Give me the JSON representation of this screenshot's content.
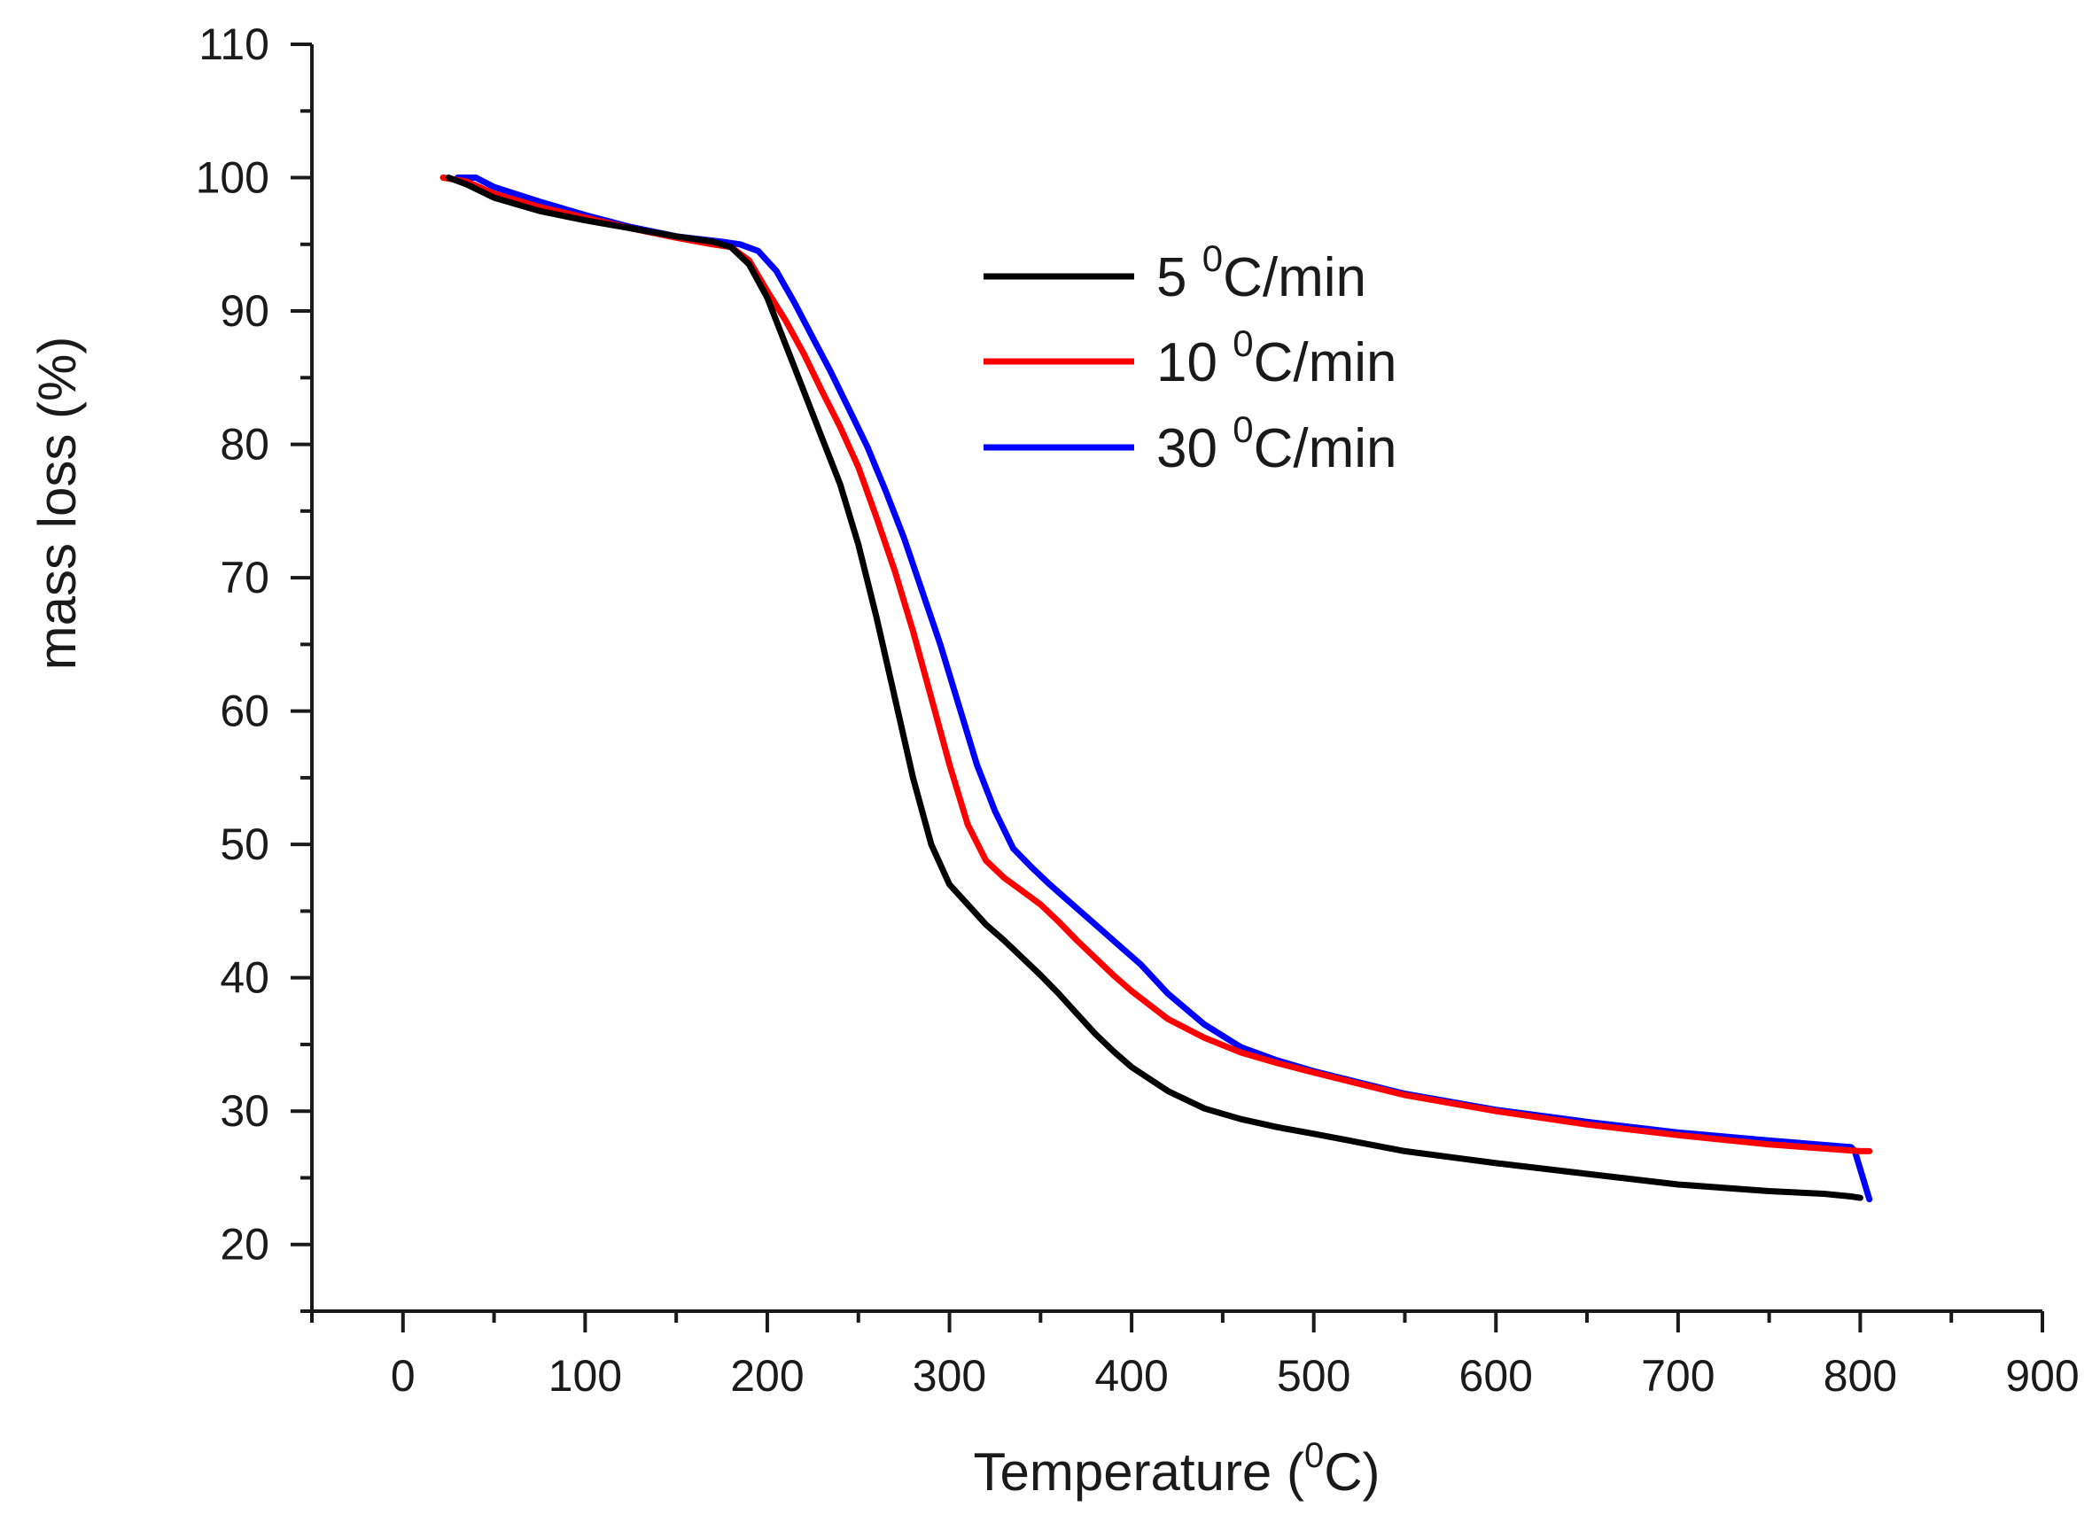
{
  "chart_data": {
    "type": "line",
    "title": "",
    "xlabel": {
      "main": "Temperature (",
      "sup": "0",
      "unit": "C)"
    },
    "ylabel": "mass loss (%)",
    "xlim": [
      -50,
      900
    ],
    "ylim": [
      15,
      110
    ],
    "xticks": [
      0,
      100,
      200,
      300,
      400,
      500,
      600,
      700,
      800,
      900
    ],
    "xtick_labels": [
      "0",
      "100",
      "200",
      "300",
      "400",
      "500",
      "600",
      "700",
      "800",
      "900"
    ],
    "yticks": [
      20,
      30,
      40,
      50,
      60,
      70,
      80,
      90,
      100,
      110
    ],
    "ytick_labels": [
      "20",
      "30",
      "40",
      "50",
      "60",
      "70",
      "80",
      "90",
      "100",
      "110"
    ],
    "grid": false,
    "legend_position": "upper-right",
    "series": [
      {
        "name": "5 °C/min",
        "label_main": "5 ",
        "label_sup": "0",
        "label_unit": "C/min",
        "color": "#000000",
        "x": [
          25,
          35,
          50,
          75,
          100,
          125,
          150,
          170,
          180,
          190,
          200,
          210,
          220,
          230,
          240,
          250,
          260,
          270,
          280,
          290,
          300,
          310,
          320,
          330,
          340,
          350,
          360,
          370,
          380,
          390,
          400,
          420,
          440,
          460,
          480,
          500,
          550,
          600,
          650,
          700,
          750,
          780,
          795,
          800
        ],
        "y": [
          100,
          99.5,
          98.5,
          97.5,
          96.8,
          96.2,
          95.6,
          95.2,
          94.8,
          93.5,
          91.0,
          87.5,
          84.0,
          80.5,
          77.0,
          72.5,
          67.0,
          61.0,
          55.0,
          50.0,
          47.0,
          45.5,
          44.0,
          42.8,
          41.5,
          40.2,
          38.8,
          37.3,
          35.8,
          34.5,
          33.3,
          31.5,
          30.2,
          29.4,
          28.8,
          28.3,
          27.0,
          26.1,
          25.3,
          24.5,
          24.0,
          23.8,
          23.6,
          23.5
        ]
      },
      {
        "name": "10 °C/min",
        "label_main": "10 ",
        "label_sup": "0",
        "label_unit": "C/min",
        "color": "#ff0000",
        "x": [
          22,
          35,
          50,
          75,
          100,
          125,
          150,
          170,
          180,
          190,
          200,
          210,
          220,
          230,
          240,
          250,
          260,
          270,
          280,
          290,
          300,
          310,
          320,
          330,
          340,
          350,
          360,
          370,
          380,
          390,
          400,
          420,
          440,
          460,
          480,
          500,
          550,
          600,
          650,
          700,
          750,
          780,
          800,
          805
        ],
        "y": [
          100,
          99.7,
          98.8,
          97.8,
          97.0,
          96.2,
          95.5,
          95.0,
          94.8,
          93.8,
          91.5,
          89.3,
          86.8,
          84.0,
          81.3,
          78.3,
          74.5,
          70.5,
          66.0,
          61.0,
          56.0,
          51.5,
          48.8,
          47.5,
          46.5,
          45.5,
          44.2,
          42.8,
          41.5,
          40.2,
          39.0,
          36.9,
          35.5,
          34.4,
          33.6,
          32.9,
          31.2,
          30.0,
          29.0,
          28.2,
          27.5,
          27.2,
          27.0,
          27.0
        ]
      },
      {
        "name": "30 °C/min",
        "label_main": "30 ",
        "label_sup": "0",
        "label_unit": "C/min",
        "color": "#0000ff",
        "x": [
          30,
          40,
          50,
          75,
          100,
          125,
          150,
          175,
          185,
          195,
          205,
          215,
          225,
          235,
          245,
          255,
          265,
          275,
          285,
          295,
          305,
          315,
          325,
          335,
          345,
          355,
          365,
          375,
          385,
          395,
          405,
          420,
          440,
          460,
          480,
          500,
          550,
          600,
          650,
          700,
          750,
          795,
          797,
          805
        ],
        "y": [
          100,
          100,
          99.3,
          98.2,
          97.2,
          96.3,
          95.6,
          95.2,
          95.0,
          94.5,
          93.0,
          90.6,
          88.0,
          85.4,
          82.6,
          79.8,
          76.5,
          73.0,
          69.0,
          65.0,
          60.5,
          56.0,
          52.5,
          49.7,
          48.3,
          47.0,
          45.8,
          44.6,
          43.4,
          42.2,
          41.0,
          38.8,
          36.5,
          34.8,
          33.8,
          33.0,
          31.3,
          30.1,
          29.2,
          28.4,
          27.8,
          27.3,
          27.0,
          23.4
        ]
      }
    ]
  }
}
